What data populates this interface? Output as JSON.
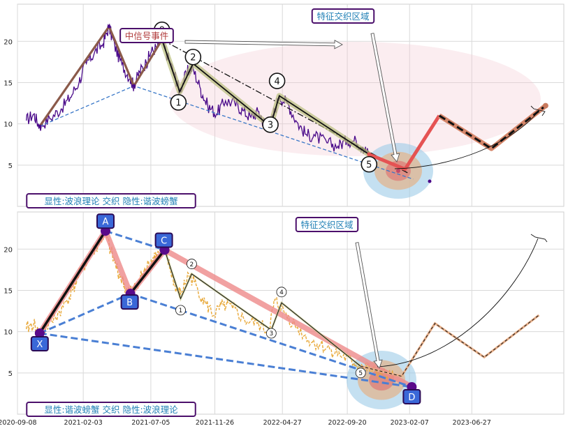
{
  "chart_data": [
    {
      "type": "line",
      "panel": "top",
      "xlim": [
        "2020-09-08",
        "2024-01-20"
      ],
      "ylim": [
        0,
        24.5
      ],
      "yticks": [
        5,
        10,
        15,
        20
      ],
      "grid": true,
      "price_series": [
        [
          "2020-09-28",
          10.4
        ],
        [
          "2020-10-15",
          11.2
        ],
        [
          "2020-10-28",
          9.7
        ],
        [
          "2020-11-20",
          10.6
        ],
        [
          "2020-12-15",
          11.8
        ],
        [
          "2021-01-05",
          13.2
        ],
        [
          "2021-01-25",
          15.1
        ],
        [
          "2021-02-10",
          17.3
        ],
        [
          "2021-02-28",
          18.6
        ],
        [
          "2021-03-20",
          19.7
        ],
        [
          "2021-04-02",
          21.8
        ],
        [
          "2021-04-15",
          19.5
        ],
        [
          "2021-05-01",
          17.2
        ],
        [
          "2021-05-20",
          15.5
        ],
        [
          "2021-05-28",
          14.6
        ],
        [
          "2021-06-10",
          16.3
        ],
        [
          "2021-06-25",
          17.4
        ],
        [
          "2021-07-05",
          18.6
        ],
        [
          "2021-07-20",
          19.4
        ],
        [
          "2021-07-30",
          20.2
        ],
        [
          "2021-08-12",
          18.2
        ],
        [
          "2021-08-28",
          16.0
        ],
        [
          "2021-09-08",
          13.9
        ],
        [
          "2021-09-25",
          16.3
        ],
        [
          "2021-10-08",
          16.8
        ],
        [
          "2021-10-25",
          14.2
        ],
        [
          "2021-11-10",
          12.2
        ],
        [
          "2021-11-30",
          11.2
        ],
        [
          "2021-12-20",
          12.8
        ],
        [
          "2022-01-10",
          12.5
        ],
        [
          "2022-01-28",
          11.6
        ],
        [
          "2022-02-15",
          10.8
        ],
        [
          "2022-03-05",
          11.5
        ],
        [
          "2022-03-20",
          9.9
        ],
        [
          "2022-03-31",
          9.7
        ],
        [
          "2022-04-20",
          13.4
        ],
        [
          "2022-05-10",
          12.4
        ],
        [
          "2022-05-30",
          10.2
        ],
        [
          "2022-06-20",
          8.7
        ],
        [
          "2022-07-10",
          8.5
        ],
        [
          "2022-08-05",
          7.7
        ],
        [
          "2022-08-30",
          7.3
        ],
        [
          "2022-09-20",
          8.0
        ],
        [
          "2022-10-10",
          7.9
        ],
        [
          "2022-10-25",
          7.2
        ],
        [
          "2022-11-08",
          6.3
        ]
      ],
      "zigzag_main": [
        [
          "2020-10-28",
          9.7
        ],
        [
          "2021-04-02",
          21.8
        ],
        [
          "2021-05-28",
          14.6
        ],
        [
          "2021-07-30",
          20.2
        ]
      ],
      "wave_path": [
        [
          "2021-07-30",
          20.2
        ],
        [
          "2021-09-08",
          13.9
        ],
        [
          "2021-10-08",
          17.3
        ],
        [
          "2022-03-31",
          9.7
        ],
        [
          "2022-04-20",
          13.4
        ],
        [
          "2022-11-08",
          6.3
        ]
      ],
      "dashdot_line": [
        [
          "2021-07-30",
          20.2
        ],
        [
          "2023-02-05",
          4.0
        ]
      ],
      "dashed_support": [
        [
          "2020-10-28",
          9.7
        ],
        [
          "2021-05-28",
          14.6
        ],
        [
          "2023-02-15",
          3.3
        ]
      ],
      "projection_path": [
        [
          "2022-11-08",
          6.3
        ],
        [
          "2023-01-28",
          4.5
        ],
        [
          "2023-04-15",
          11.0
        ],
        [
          "2023-08-10",
          7.0
        ],
        [
          "2023-12-10",
          12.2
        ]
      ],
      "wave_labels": [
        {
          "label": "0",
          "x": "2021-07-30",
          "y": 21.4
        },
        {
          "label": "1",
          "x": "2021-09-05",
          "y": 12.6
        },
        {
          "label": "2",
          "x": "2021-10-08",
          "y": 18.1
        },
        {
          "label": "3",
          "x": "2022-03-31",
          "y": 9.9
        },
        {
          "label": "4",
          "x": "2022-04-15",
          "y": 15.2
        },
        {
          "label": "5",
          "x": "2022-11-08",
          "y": 5.1
        }
      ],
      "annotations": {
        "box_left": "中信号事件",
        "zone_label": "特征交织区域",
        "footer": "显性:波浪理论 交织 隐性:谐波螃蟹"
      }
    },
    {
      "type": "line",
      "panel": "bottom",
      "xlim": [
        "2020-09-08",
        "2024-01-20"
      ],
      "ylim": [
        0,
        24.5
      ],
      "yticks": [
        5,
        10,
        15,
        20
      ],
      "xticks": [
        "2020-09-08",
        "2021-02-03",
        "2021-07-05",
        "2021-11-26",
        "2022-04-27",
        "2022-09-20",
        "2023-02-07",
        "2023-06-27"
      ],
      "grid": true,
      "price_series": [
        [
          "2020-09-28",
          10.3
        ],
        [
          "2020-10-15",
          11.0
        ],
        [
          "2020-10-28",
          9.6
        ],
        [
          "2020-11-25",
          11.2
        ],
        [
          "2020-12-20",
          13.0
        ],
        [
          "2021-01-10",
          15.0
        ],
        [
          "2021-01-30",
          17.4
        ],
        [
          "2021-02-20",
          19.4
        ],
        [
          "2021-03-10",
          20.6
        ],
        [
          "2021-03-25",
          22.0
        ],
        [
          "2021-04-10",
          19.0
        ],
        [
          "2021-04-25",
          17.0
        ],
        [
          "2021-05-10",
          15.2
        ],
        [
          "2021-05-25",
          14.8
        ],
        [
          "2021-06-10",
          16.4
        ],
        [
          "2021-06-25",
          17.6
        ],
        [
          "2021-07-10",
          19.0
        ],
        [
          "2021-07-25",
          19.8
        ],
        [
          "2021-08-05",
          20.0
        ],
        [
          "2021-08-18",
          17.5
        ],
        [
          "2021-09-01",
          15.2
        ],
        [
          "2021-09-10",
          14.5
        ],
        [
          "2021-09-28",
          17.0
        ],
        [
          "2021-10-15",
          15.6
        ],
        [
          "2021-11-05",
          13.4
        ],
        [
          "2021-11-25",
          12.0
        ],
        [
          "2021-12-15",
          13.2
        ],
        [
          "2022-01-05",
          12.8
        ],
        [
          "2022-02-01",
          11.4
        ],
        [
          "2022-03-01",
          11.0
        ],
        [
          "2022-03-28",
          10.0
        ],
        [
          "2022-04-10",
          13.8
        ],
        [
          "2022-04-30",
          12.5
        ],
        [
          "2022-05-25",
          10.8
        ],
        [
          "2022-06-25",
          9.0
        ],
        [
          "2022-07-20",
          8.4
        ],
        [
          "2022-08-15",
          7.8
        ],
        [
          "2022-09-10",
          7.0
        ],
        [
          "2022-10-05",
          6.2
        ],
        [
          "2022-10-25",
          5.8
        ],
        [
          "2022-11-15",
          5.2
        ],
        [
          "2022-12-10",
          4.8
        ],
        [
          "2023-01-05",
          4.4
        ]
      ],
      "harmonic_points": [
        {
          "label": "X",
          "x": "2020-10-28",
          "y": 9.8
        },
        {
          "label": "A",
          "x": "2021-03-25",
          "y": 22.2
        },
        {
          "label": "B",
          "x": "2021-05-20",
          "y": 14.6
        },
        {
          "label": "C",
          "x": "2021-08-05",
          "y": 19.9
        },
        {
          "label": "D",
          "x": "2023-02-12",
          "y": 3.3
        }
      ],
      "wave_path": [
        [
          "2021-08-05",
          19.9
        ],
        [
          "2021-09-10",
          14.0
        ],
        [
          "2021-10-05",
          17.0
        ],
        [
          "2022-04-02",
          10.2
        ],
        [
          "2022-04-25",
          13.5
        ],
        [
          "2022-10-20",
          5.8
        ]
      ],
      "projection_path": [
        [
          "2022-10-20",
          5.8
        ],
        [
          "2023-01-20",
          4.6
        ],
        [
          "2023-04-05",
          11.0
        ],
        [
          "2023-07-25",
          6.9
        ],
        [
          "2023-11-25",
          12.0
        ]
      ],
      "wave_labels": [
        {
          "label": "1",
          "x": "2021-09-10",
          "y": 12.6
        },
        {
          "label": "2",
          "x": "2021-10-05",
          "y": 18.2
        },
        {
          "label": "3",
          "x": "2022-04-02",
          "y": 9.8
        },
        {
          "label": "4",
          "x": "2022-04-25",
          "y": 14.8
        },
        {
          "label": "5",
          "x": "2022-10-20",
          "y": 5.0
        }
      ],
      "annotations": {
        "zone_label": "特征交织区域",
        "footer": "显性:谐波螃蟹 交织 隐性:波浪理论"
      }
    }
  ]
}
